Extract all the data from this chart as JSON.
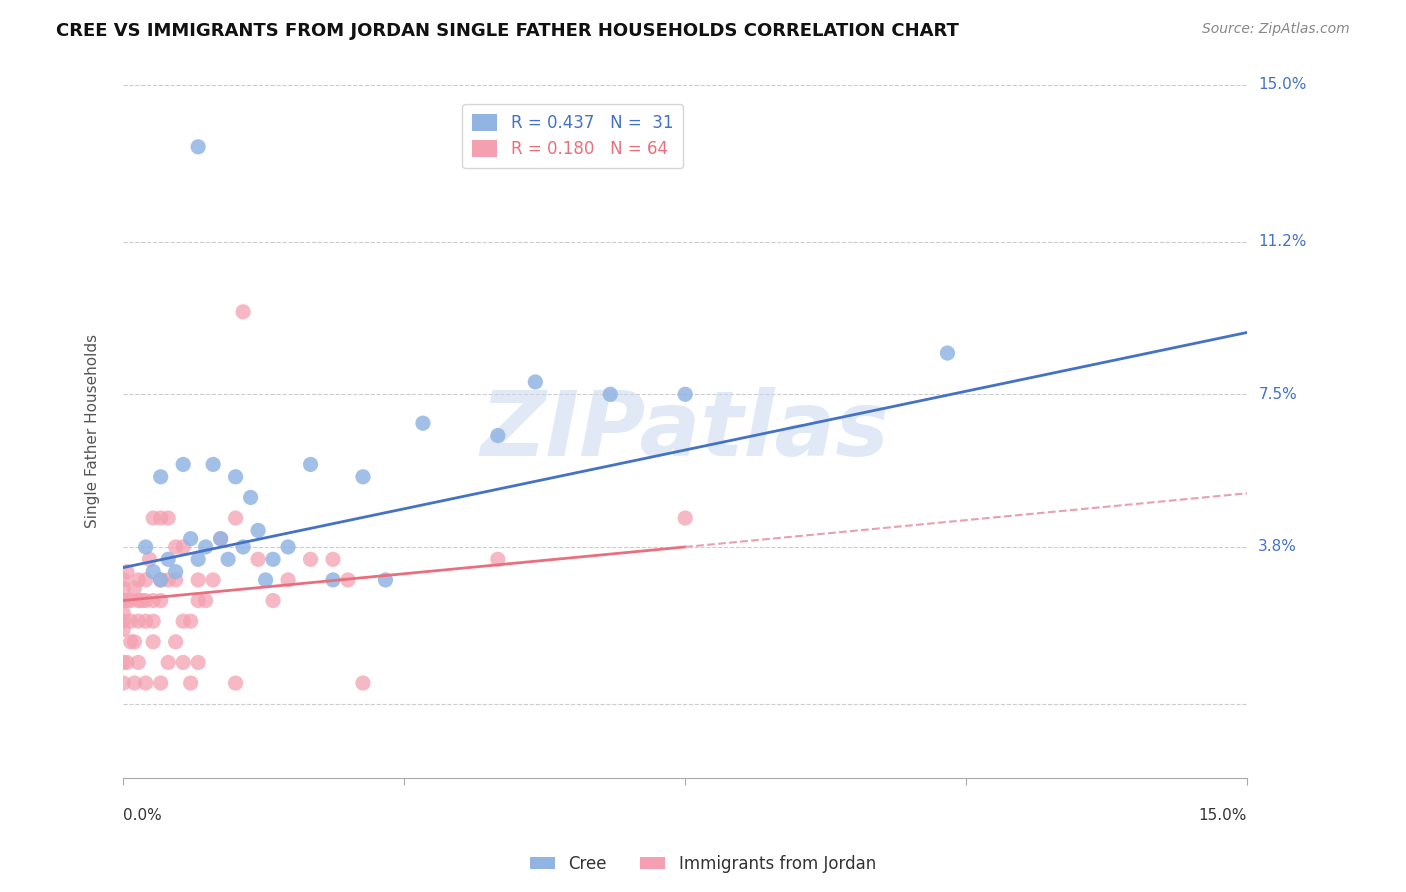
{
  "title": "CREE VS IMMIGRANTS FROM JORDAN SINGLE FATHER HOUSEHOLDS CORRELATION CHART",
  "source": "Source: ZipAtlas.com",
  "ylabel": "Single Father Households",
  "xmin": 0.0,
  "xmax": 15.0,
  "ymin": -1.8,
  "ymax": 15.0,
  "yticks": [
    0.0,
    3.8,
    7.5,
    11.2,
    15.0
  ],
  "ytick_labels": [
    "",
    "3.8%",
    "7.5%",
    "11.2%",
    "15.0%"
  ],
  "watermark": "ZIPatlas",
  "legend_r_cree": "R = 0.437",
  "legend_n_cree": "N =  31",
  "legend_r_jordan": "R = 0.180",
  "legend_n_jordan": "N = 64",
  "cree_color": "#92b4e3",
  "jordan_color": "#f4a0b0",
  "trendline_cree_color": "#4472c4",
  "trendline_jordan_solid_color": "#e8707e",
  "trendline_jordan_dash_color": "#e8a0b0",
  "background_color": "#ffffff",
  "grid_color": "#cccccc",
  "cree_trendline_x0": 0.0,
  "cree_trendline_y0": 3.3,
  "cree_trendline_x1": 15.0,
  "cree_trendline_y1": 9.0,
  "jordan_solid_x0": 0.0,
  "jordan_solid_y0": 2.5,
  "jordan_solid_x1": 7.5,
  "jordan_solid_y1": 3.8,
  "jordan_dash_x0": 7.5,
  "jordan_dash_y0": 3.8,
  "jordan_dash_x1": 15.0,
  "jordan_dash_y1": 5.1,
  "cree_points_x": [
    0.3,
    0.4,
    0.5,
    0.5,
    0.6,
    0.7,
    0.8,
    0.9,
    1.0,
    1.1,
    1.2,
    1.3,
    1.4,
    1.5,
    1.6,
    1.7,
    1.8,
    1.9,
    2.0,
    2.2,
    2.5,
    2.8,
    3.2,
    3.5,
    4.0,
    5.0,
    5.5,
    6.5,
    7.5,
    11.0,
    1.0
  ],
  "cree_points_y": [
    3.8,
    3.2,
    5.5,
    3.0,
    3.5,
    3.2,
    5.8,
    4.0,
    3.5,
    3.8,
    5.8,
    4.0,
    3.5,
    5.5,
    3.8,
    5.0,
    4.2,
    3.0,
    3.5,
    3.8,
    5.8,
    3.0,
    5.5,
    3.0,
    6.8,
    6.5,
    7.8,
    7.5,
    7.5,
    8.5,
    13.5
  ],
  "jordan_points_x": [
    0.0,
    0.0,
    0.0,
    0.0,
    0.0,
    0.0,
    0.05,
    0.05,
    0.1,
    0.1,
    0.15,
    0.15,
    0.2,
    0.2,
    0.2,
    0.25,
    0.3,
    0.3,
    0.3,
    0.35,
    0.4,
    0.4,
    0.4,
    0.5,
    0.5,
    0.5,
    0.6,
    0.6,
    0.7,
    0.7,
    0.8,
    0.8,
    0.9,
    1.0,
    1.0,
    1.1,
    1.2,
    1.3,
    1.5,
    1.6,
    1.8,
    2.0,
    2.2,
    2.5,
    2.8,
    3.0,
    3.2,
    0.0,
    0.0,
    0.05,
    0.1,
    0.15,
    0.2,
    0.3,
    0.4,
    0.5,
    0.6,
    0.7,
    0.8,
    0.9,
    1.0,
    1.5,
    5.0,
    7.5
  ],
  "jordan_points_y": [
    2.5,
    2.8,
    3.0,
    2.2,
    1.8,
    2.0,
    2.5,
    3.2,
    2.0,
    2.5,
    2.8,
    1.5,
    2.0,
    2.5,
    3.0,
    2.5,
    2.5,
    3.0,
    2.0,
    3.5,
    2.0,
    2.5,
    4.5,
    2.5,
    3.0,
    4.5,
    3.0,
    4.5,
    3.0,
    3.8,
    2.0,
    3.8,
    2.0,
    3.0,
    2.5,
    2.5,
    3.0,
    4.0,
    4.5,
    9.5,
    3.5,
    2.5,
    3.0,
    3.5,
    3.5,
    3.0,
    0.5,
    0.5,
    1.0,
    1.0,
    1.5,
    0.5,
    1.0,
    0.5,
    1.5,
    0.5,
    1.0,
    1.5,
    1.0,
    0.5,
    1.0,
    0.5,
    3.5,
    4.5
  ]
}
